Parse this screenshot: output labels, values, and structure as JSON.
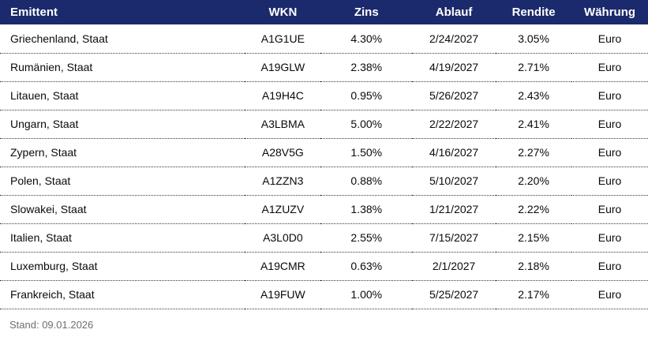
{
  "table": {
    "columns": [
      {
        "label": "Emittent"
      },
      {
        "label": "WKN"
      },
      {
        "label": "Zins"
      },
      {
        "label": "Ablauf"
      },
      {
        "label": "Rendite"
      },
      {
        "label": "Währung"
      }
    ],
    "rows": [
      {
        "emittent": "Griechenland, Staat",
        "wkn": "A1G1UE",
        "zins": "4.30%",
        "ablauf": "2/24/2027",
        "rendite": "3.05%",
        "waehrung": "Euro"
      },
      {
        "emittent": "Rumänien, Staat",
        "wkn": "A19GLW",
        "zins": "2.38%",
        "ablauf": "4/19/2027",
        "rendite": "2.71%",
        "waehrung": "Euro"
      },
      {
        "emittent": "Litauen, Staat",
        "wkn": "A19H4C",
        "zins": "0.95%",
        "ablauf": "5/26/2027",
        "rendite": "2.43%",
        "waehrung": "Euro"
      },
      {
        "emittent": "Ungarn, Staat",
        "wkn": "A3LBMA",
        "zins": "5.00%",
        "ablauf": "2/22/2027",
        "rendite": "2.41%",
        "waehrung": "Euro"
      },
      {
        "emittent": "Zypern, Staat",
        "wkn": "A28V5G",
        "zins": "1.50%",
        "ablauf": "4/16/2027",
        "rendite": "2.27%",
        "waehrung": "Euro"
      },
      {
        "emittent": "Polen, Staat",
        "wkn": "A1ZZN3",
        "zins": "0.88%",
        "ablauf": "5/10/2027",
        "rendite": "2.20%",
        "waehrung": "Euro"
      },
      {
        "emittent": "Slowakei, Staat",
        "wkn": "A1ZUZV",
        "zins": "1.38%",
        "ablauf": "1/21/2027",
        "rendite": "2.22%",
        "waehrung": "Euro"
      },
      {
        "emittent": "Italien, Staat",
        "wkn": "A3L0D0",
        "zins": "2.55%",
        "ablauf": "7/15/2027",
        "rendite": "2.15%",
        "waehrung": "Euro"
      },
      {
        "emittent": "Luxemburg, Staat",
        "wkn": "A19CMR",
        "zins": "0.63%",
        "ablauf": "2/1/2027",
        "rendite": "2.18%",
        "waehrung": "Euro"
      },
      {
        "emittent": "Frankreich, Staat",
        "wkn": "A19FUW",
        "zins": "1.00%",
        "ablauf": "5/25/2027",
        "rendite": "2.17%",
        "waehrung": "Euro"
      }
    ]
  },
  "footer": {
    "stand_label": "Stand: 09.01.2026"
  },
  "colors": {
    "header_bg": "#1B2A6C",
    "header_text": "#FFFFFF",
    "row_text": "#0A0A0A",
    "divider": "#3A3A3A",
    "footer_text": "#6E6E6E"
  }
}
